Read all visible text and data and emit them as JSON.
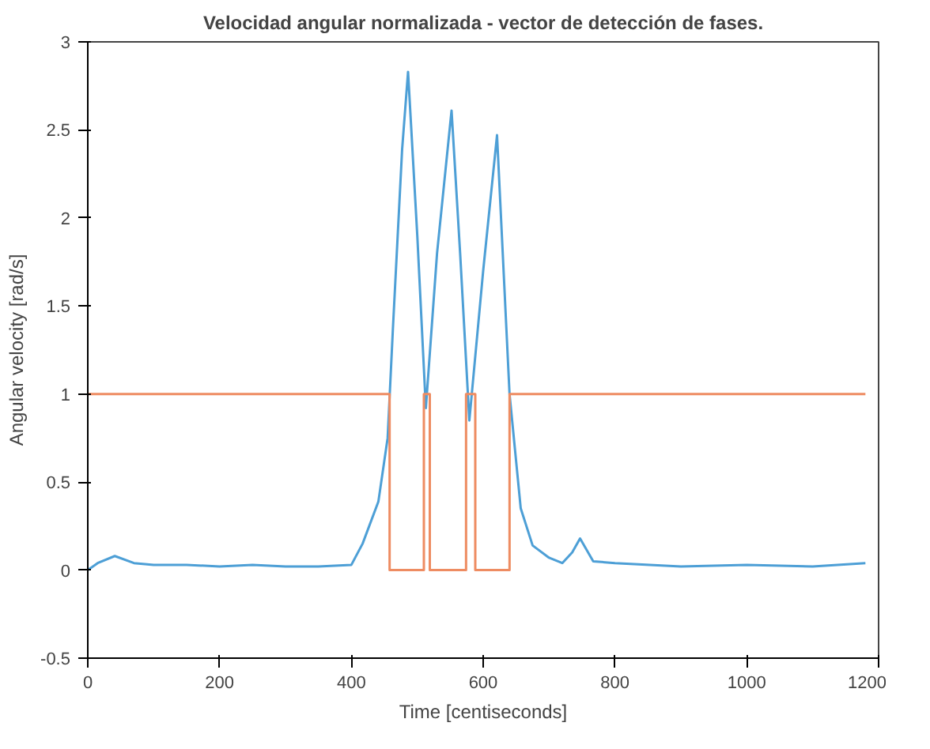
{
  "chart_data": {
    "type": "line",
    "title": "Velocidad angular normalizada - vector de detección de fases.",
    "xlabel": "Time [centiseconds]",
    "ylabel": "Angular velocity [rad/s]",
    "xlim": [
      0,
      1200
    ],
    "ylim": [
      -0.5,
      3
    ],
    "xticks": [
      0,
      200,
      400,
      600,
      800,
      1000,
      1200
    ],
    "yticks": [
      -0.5,
      0,
      0.5,
      1,
      1.5,
      2,
      2.5,
      3
    ],
    "grid": false,
    "series": [
      {
        "color": "#4d9fd6",
        "x": [
          0,
          15,
          41,
          70,
          100,
          150,
          200,
          250,
          300,
          350,
          400,
          417,
          441,
          455,
          463,
          477,
          486,
          500,
          513,
          530,
          552,
          565,
          579,
          600,
          621,
          640,
          657,
          675,
          700,
          720,
          735,
          747,
          767,
          800,
          900,
          1000,
          1100,
          1180
        ],
        "values": [
          0.0,
          0.04,
          0.08,
          0.04,
          0.03,
          0.03,
          0.02,
          0.03,
          0.02,
          0.02,
          0.03,
          0.15,
          0.39,
          0.75,
          1.37,
          2.39,
          2.83,
          1.9,
          0.92,
          1.8,
          2.61,
          1.8,
          0.85,
          1.7,
          2.47,
          1.0,
          0.35,
          0.14,
          0.07,
          0.04,
          0.1,
          0.18,
          0.05,
          0.04,
          0.02,
          0.03,
          0.02,
          0.04
        ]
      },
      {
        "color": "#ee8c62",
        "x": [
          0,
          458,
          458,
          510,
          510,
          519,
          519,
          574,
          574,
          588,
          588,
          640,
          640,
          1180
        ],
        "values": [
          1,
          1,
          0,
          0,
          1,
          1,
          0,
          0,
          1,
          1,
          0,
          0,
          1,
          1
        ]
      }
    ]
  }
}
